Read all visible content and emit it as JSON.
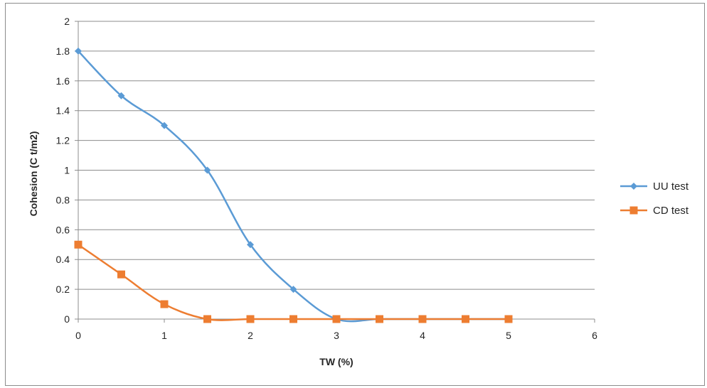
{
  "chart_data": {
    "type": "line",
    "title": "",
    "xlabel": "TW (%)",
    "ylabel": "Cohesion (C t/m2)",
    "xlim": [
      0,
      6
    ],
    "ylim": [
      0,
      2
    ],
    "xticks": [
      0,
      1,
      2,
      3,
      4,
      5,
      6
    ],
    "yticks": [
      0,
      0.2,
      0.4,
      0.6,
      0.8,
      1,
      1.2,
      1.4,
      1.6,
      1.8,
      2
    ],
    "grid": "horizontal",
    "legend_position": "right",
    "smooth": true,
    "series": [
      {
        "name": "UU test",
        "color": "#5b9bd5",
        "marker": "diamond",
        "x": [
          0,
          0.5,
          1,
          1.5,
          2,
          2.5,
          3,
          3.5,
          4,
          4.5,
          5
        ],
        "y": [
          1.8,
          1.5,
          1.3,
          1.0,
          0.5,
          0.2,
          0,
          0,
          0,
          0,
          0
        ]
      },
      {
        "name": "CD test",
        "color": "#ed7d31",
        "marker": "square",
        "x": [
          0,
          0.5,
          1,
          1.5,
          2,
          2.5,
          3,
          3.5,
          4,
          4.5,
          5
        ],
        "y": [
          0.5,
          0.3,
          0.1,
          0,
          0,
          0,
          0,
          0,
          0,
          0,
          0
        ]
      }
    ]
  }
}
